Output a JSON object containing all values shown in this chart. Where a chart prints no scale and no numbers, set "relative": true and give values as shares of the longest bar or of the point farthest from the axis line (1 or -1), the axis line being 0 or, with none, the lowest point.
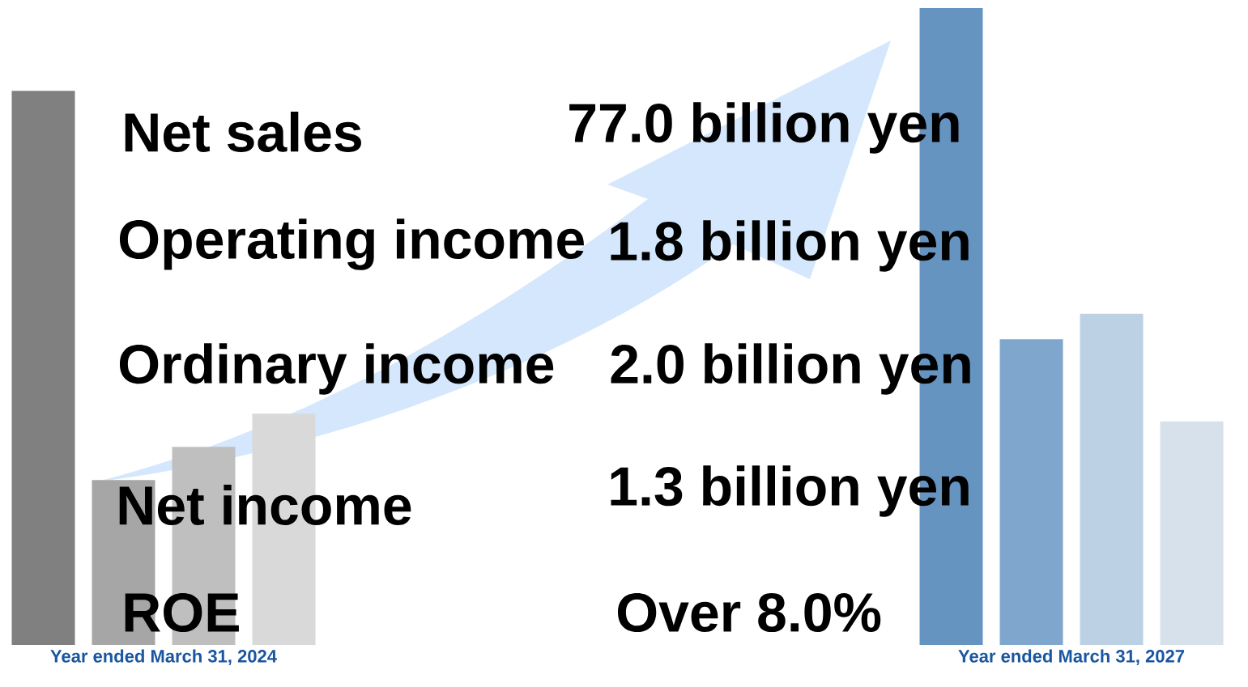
{
  "chart_data": {
    "type": "bar",
    "relative": true,
    "categories": [
      "Year ended March 31, 2024",
      "Year ended March 31, 2027"
    ],
    "series": [
      {
        "colors": [
          "#808080",
          "#6694c1"
        ],
        "values": [
          0.87,
          1.0
        ]
      },
      {
        "colors": [
          "#a6a6a6",
          "#7fa7cd"
        ],
        "values": [
          0.259,
          0.48
        ]
      },
      {
        "colors": [
          "#bfbfbf",
          "#bdd1e5"
        ],
        "values": [
          0.311,
          0.52
        ]
      },
      {
        "colors": [
          "#d9d9d9",
          "#d6e1ec"
        ],
        "values": [
          0.363,
          0.351
        ]
      }
    ],
    "annotations": [
      "Net sales",
      "77.0 billion yen",
      "Operating income",
      "1.8 billion yen",
      "Ordinary income",
      "2.0 billion yen",
      "Net income",
      "1.3 billion yen",
      "ROE",
      "Over 8.0%"
    ]
  }
}
